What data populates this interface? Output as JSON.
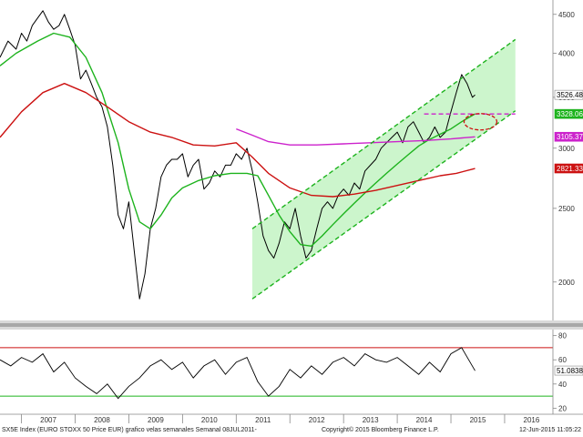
{
  "chart_data": [
    {
      "type": "line",
      "subtype": "weekly-candlestick",
      "y_scale": "log",
      "ylim": [
        1780,
        4700
      ],
      "y_ticks": [
        2000,
        2500,
        3000,
        3500,
        4000,
        4500
      ],
      "x_labels": [
        "2007",
        "2008",
        "2009",
        "2010",
        "2011",
        "2012",
        "2013",
        "2014",
        "2015",
        "2016"
      ],
      "xlim": [
        2006.6,
        2016.9
      ],
      "series": [
        {
          "role": "price",
          "color": "#000000",
          "x": [
            2006.6,
            2006.75,
            2006.9,
            2007.0,
            2007.1,
            2007.2,
            2007.3,
            2007.4,
            2007.5,
            2007.6,
            2007.7,
            2007.8,
            2007.9,
            2008.0,
            2008.1,
            2008.2,
            2008.3,
            2008.4,
            2008.5,
            2008.6,
            2008.7,
            2008.8,
            2008.9,
            2009.0,
            2009.1,
            2009.2,
            2009.3,
            2009.4,
            2009.5,
            2009.6,
            2009.7,
            2009.8,
            2009.9,
            2010.0,
            2010.1,
            2010.2,
            2010.3,
            2010.4,
            2010.5,
            2010.6,
            2010.7,
            2010.8,
            2010.9,
            2011.0,
            2011.1,
            2011.2,
            2011.3,
            2011.4,
            2011.5,
            2011.6,
            2011.7,
            2011.8,
            2011.9,
            2012.0,
            2012.1,
            2012.2,
            2012.3,
            2012.4,
            2012.5,
            2012.6,
            2012.7,
            2012.8,
            2012.9,
            2013.0,
            2013.1,
            2013.2,
            2013.3,
            2013.4,
            2013.5,
            2013.6,
            2013.7,
            2013.8,
            2013.9,
            2014.0,
            2014.1,
            2014.2,
            2014.3,
            2014.4,
            2014.5,
            2014.6,
            2014.7,
            2014.8,
            2014.9,
            2015.0,
            2015.1,
            2015.2,
            2015.3,
            2015.4,
            2015.45
          ],
          "y": [
            3950,
            4150,
            4050,
            4250,
            4150,
            4350,
            4450,
            4550,
            4400,
            4300,
            4350,
            4500,
            4300,
            4100,
            3700,
            3800,
            3650,
            3500,
            3400,
            3200,
            2850,
            2450,
            2350,
            2550,
            2200,
            1900,
            2050,
            2350,
            2500,
            2750,
            2850,
            2900,
            2900,
            2950,
            2750,
            2850,
            2900,
            2650,
            2700,
            2800,
            2750,
            2850,
            2850,
            2950,
            2900,
            3000,
            2800,
            2550,
            2300,
            2200,
            2150,
            2250,
            2400,
            2350,
            2500,
            2300,
            2150,
            2200,
            2350,
            2500,
            2550,
            2500,
            2600,
            2650,
            2600,
            2700,
            2650,
            2800,
            2850,
            2900,
            3000,
            3050,
            3100,
            3150,
            3050,
            3200,
            3250,
            3150,
            3050,
            3100,
            3200,
            3100,
            3150,
            3350,
            3550,
            3750,
            3650,
            3500,
            3526
          ]
        },
        {
          "role": "moving-average",
          "color": "#1db31d",
          "x": [
            2006.6,
            2006.9,
            2007.3,
            2007.6,
            2007.9,
            2008.2,
            2008.5,
            2008.8,
            2009.0,
            2009.2,
            2009.4,
            2009.6,
            2009.8,
            2010.0,
            2010.3,
            2010.6,
            2010.9,
            2011.2,
            2011.4,
            2011.6,
            2011.8,
            2012.0,
            2012.2,
            2012.4,
            2012.6,
            2012.8,
            2013.0,
            2013.2,
            2013.4,
            2013.6,
            2013.8,
            2014.0,
            2014.2,
            2014.4,
            2014.6,
            2014.8,
            2015.0,
            2015.2,
            2015.45
          ],
          "y": [
            3850,
            4000,
            4150,
            4250,
            4200,
            3950,
            3550,
            3050,
            2650,
            2400,
            2350,
            2450,
            2580,
            2660,
            2720,
            2760,
            2780,
            2780,
            2760,
            2600,
            2450,
            2330,
            2240,
            2230,
            2300,
            2380,
            2460,
            2540,
            2620,
            2700,
            2780,
            2860,
            2940,
            3020,
            3080,
            3130,
            3180,
            3250,
            3328
          ]
        },
        {
          "role": "moving-average",
          "color": "#cc1111",
          "x": [
            2006.6,
            2007.0,
            2007.4,
            2007.8,
            2008.2,
            2008.6,
            2009.0,
            2009.4,
            2009.8,
            2010.2,
            2010.6,
            2011.0,
            2011.3,
            2011.6,
            2012.0,
            2012.4,
            2012.8,
            2013.2,
            2013.6,
            2014.0,
            2014.4,
            2014.8,
            2015.1,
            2015.45
          ],
          "y": [
            3100,
            3350,
            3550,
            3650,
            3550,
            3400,
            3250,
            3150,
            3100,
            3030,
            3020,
            3050,
            2920,
            2780,
            2660,
            2600,
            2590,
            2610,
            2640,
            2680,
            2720,
            2760,
            2780,
            2821
          ]
        },
        {
          "role": "moving-average",
          "color": "#cc22cc",
          "x": [
            2011.0,
            2011.3,
            2011.6,
            2012.0,
            2012.5,
            2013.0,
            2013.5,
            2014.0,
            2014.5,
            2015.0,
            2015.45
          ],
          "y": [
            3180,
            3120,
            3060,
            3030,
            3030,
            3040,
            3050,
            3060,
            3070,
            3085,
            3105
          ]
        }
      ],
      "channel": {
        "color": "#1db31d",
        "lower": {
          "x": [
            2011.3,
            2016.2
          ],
          "y": [
            1900,
            3360
          ]
        },
        "upper": {
          "x": [
            2011.3,
            2016.2
          ],
          "y": [
            2350,
            4170
          ]
        },
        "mid": {
          "x": [
            2011.3,
            2016.2
          ],
          "y": [
            2110,
            3750
          ]
        }
      },
      "horizontal_line": {
        "color": "#cc22cc",
        "y": 3328,
        "x": [
          2014.5,
          2016.2
        ]
      },
      "ellipse": {
        "color": "#cc1111",
        "x": 2015.55,
        "y": 3250
      },
      "value_labels": [
        {
          "text": "3526.48",
          "y": 3526.48,
          "bg": "#ffffff",
          "fg": "#000000"
        },
        {
          "text": "3328.06",
          "y": 3328.06,
          "bg": "#1db31d",
          "fg": "#ffffff"
        },
        {
          "text": "3105.37",
          "y": 3105.37,
          "bg": "#cc22cc",
          "fg": "#ffffff"
        },
        {
          "text": "2821.33",
          "y": 2821.33,
          "bg": "#cc1111",
          "fg": "#ffffff"
        }
      ]
    },
    {
      "type": "line",
      "role": "oscillator",
      "ylim": [
        15,
        85
      ],
      "y_ticks": [
        20,
        40,
        60,
        80
      ],
      "reference_lines": [
        {
          "y": 70,
          "color": "#cc1111"
        },
        {
          "y": 30,
          "color": "#1db31d"
        }
      ],
      "series": [
        {
          "color": "#000000",
          "x": [
            2006.6,
            2006.8,
            2007.0,
            2007.2,
            2007.4,
            2007.6,
            2007.8,
            2008.0,
            2008.2,
            2008.4,
            2008.6,
            2008.8,
            2009.0,
            2009.2,
            2009.4,
            2009.6,
            2009.8,
            2010.0,
            2010.2,
            2010.4,
            2010.6,
            2010.8,
            2011.0,
            2011.2,
            2011.4,
            2011.6,
            2011.8,
            2012.0,
            2012.2,
            2012.4,
            2012.6,
            2012.8,
            2013.0,
            2013.2,
            2013.4,
            2013.6,
            2013.8,
            2014.0,
            2014.2,
            2014.4,
            2014.6,
            2014.8,
            2015.0,
            2015.2,
            2015.45
          ],
          "y": [
            60,
            55,
            62,
            58,
            65,
            50,
            58,
            45,
            38,
            32,
            40,
            28,
            38,
            45,
            55,
            60,
            52,
            58,
            45,
            55,
            60,
            48,
            58,
            62,
            42,
            30,
            38,
            52,
            45,
            55,
            48,
            58,
            62,
            55,
            65,
            60,
            58,
            62,
            55,
            48,
            58,
            50,
            65,
            70,
            51
          ]
        }
      ],
      "value_label": {
        "text": "51.0838",
        "y": 51.0838,
        "bg": "#ffffff",
        "fg": "#000000"
      }
    }
  ],
  "footer": {
    "left": "SX5E Index (EURO STOXX 50 Price EUR) grafico velas semanales  Semanal 08JUL2011-",
    "center": "Copyright© 2015 Bloomberg Finance L.P.",
    "right": "12-Jun-2015 11:05:22"
  }
}
